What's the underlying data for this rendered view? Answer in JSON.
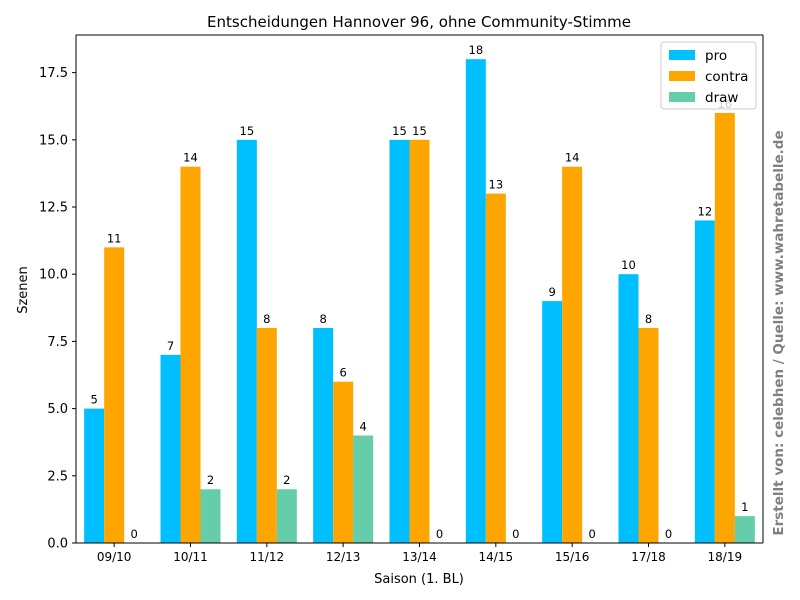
{
  "chart_data": {
    "type": "bar",
    "title": "Entscheidungen Hannover 96, ohne Community-Stimme",
    "xlabel": "Saison (1. BL)",
    "ylabel": "Szenen",
    "categories": [
      "09/10",
      "10/11",
      "11/12",
      "12/13",
      "13/14",
      "14/15",
      "15/16",
      "17/18",
      "18/19"
    ],
    "series": [
      {
        "name": "pro",
        "color": "#00BFFF",
        "values": [
          5,
          7,
          15,
          8,
          15,
          18,
          9,
          10,
          12
        ]
      },
      {
        "name": "contra",
        "color": "#FFA500",
        "values": [
          11,
          14,
          8,
          6,
          15,
          13,
          14,
          8,
          16
        ]
      },
      {
        "name": "draw",
        "color": "#66CDAA",
        "values": [
          0,
          2,
          2,
          4,
          0,
          0,
          0,
          0,
          1
        ]
      }
    ],
    "ylim": [
      0,
      18.9
    ],
    "yticks": [
      "0.0",
      "2.5",
      "5.0",
      "7.5",
      "10.0",
      "12.5",
      "15.0",
      "17.5"
    ],
    "legend_position": "top-right",
    "grid": false,
    "side_text": "Erstellt von: celebhen / Quelle: www.wahretabelle.de"
  }
}
